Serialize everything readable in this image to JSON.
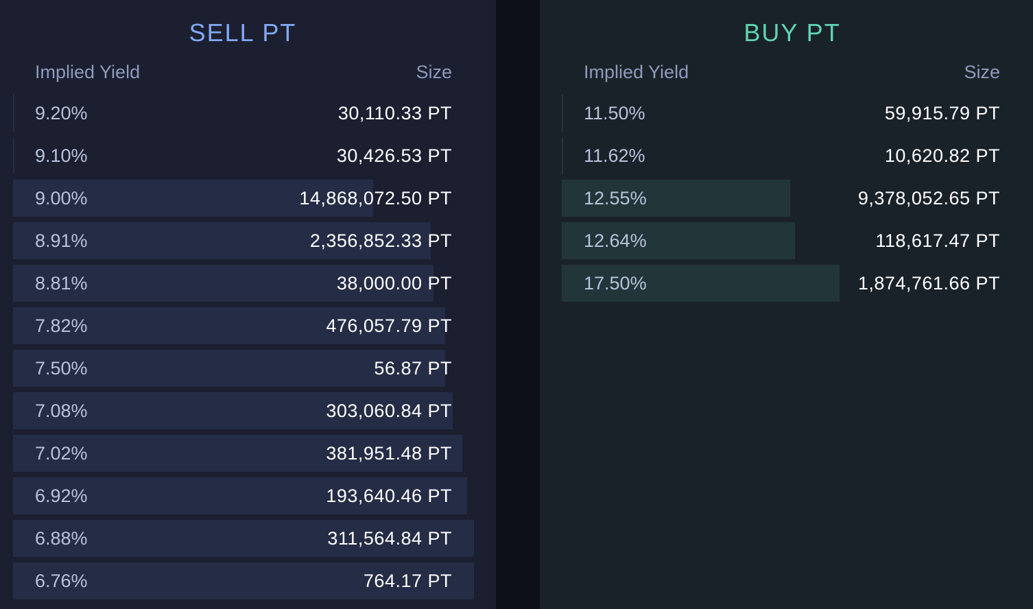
{
  "colors": {
    "sell_accent": "#82a9f7",
    "buy_accent": "#5fd5b2",
    "sell_bar": "#252c45",
    "buy_bar": "#22363a"
  },
  "sell": {
    "title": "SELL PT",
    "yield_header": "Implied Yield",
    "size_header": "Size",
    "rows": [
      {
        "yield": "9.20%",
        "size": "30,110.33 PT",
        "depth": 0.0
      },
      {
        "yield": "9.10%",
        "size": "30,426.53 PT",
        "depth": 0.0
      },
      {
        "yield": "9.00%",
        "size": "14,868,072.50 PT",
        "depth": 0.75
      },
      {
        "yield": "8.91%",
        "size": "2,356,852.33 PT",
        "depth": 0.87
      },
      {
        "yield": "8.81%",
        "size": "38,000.00 PT",
        "depth": 0.875
      },
      {
        "yield": "7.82%",
        "size": "476,057.79 PT",
        "depth": 0.9
      },
      {
        "yield": "7.50%",
        "size": "56.87 PT",
        "depth": 0.9
      },
      {
        "yield": "7.08%",
        "size": "303,060.84 PT",
        "depth": 0.915
      },
      {
        "yield": "7.02%",
        "size": "381,951.48 PT",
        "depth": 0.935
      },
      {
        "yield": "6.92%",
        "size": "193,640.46 PT",
        "depth": 0.945
      },
      {
        "yield": "6.88%",
        "size": "311,564.84 PT",
        "depth": 0.96
      },
      {
        "yield": "6.76%",
        "size": "764.17 PT",
        "depth": 0.96
      }
    ]
  },
  "buy": {
    "title": "BUY PT",
    "yield_header": "Implied Yield",
    "size_header": "Size",
    "rows": [
      {
        "yield": "11.50%",
        "size": "59,915.79 PT",
        "depth": 0.0
      },
      {
        "yield": "11.62%",
        "size": "10,620.82 PT",
        "depth": 0.0
      },
      {
        "yield": "12.55%",
        "size": "9,378,052.65 PT",
        "depth": 0.49
      },
      {
        "yield": "12.64%",
        "size": "118,617.47 PT",
        "depth": 0.5
      },
      {
        "yield": "17.50%",
        "size": "1,874,761.66 PT",
        "depth": 0.595
      }
    ]
  }
}
